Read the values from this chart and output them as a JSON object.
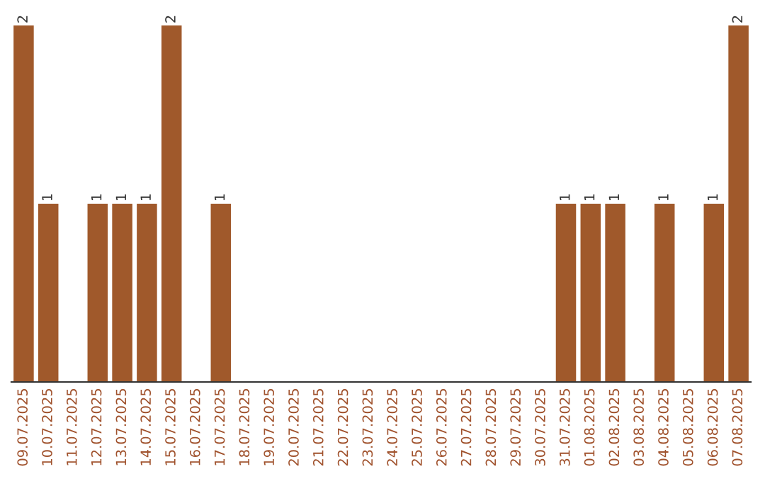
{
  "chart_data": {
    "type": "bar",
    "categories": [
      "09.07.2025",
      "10.07.2025",
      "11.07.2025",
      "12.07.2025",
      "13.07.2025",
      "14.07.2025",
      "15.07.2025",
      "16.07.2025",
      "17.07.2025",
      "18.07.2025",
      "19.07.2025",
      "20.07.2025",
      "21.07.2025",
      "22.07.2025",
      "23.07.2025",
      "24.07.2025",
      "25.07.2025",
      "26.07.2025",
      "27.07.2025",
      "28.07.2025",
      "29.07.2025",
      "30.07.2025",
      "31.07.2025",
      "01.08.2025",
      "02.08.2025",
      "03.08.2025",
      "04.08.2025",
      "05.08.2025",
      "06.08.2025",
      "07.08.2025"
    ],
    "values": [
      2,
      1,
      0,
      1,
      1,
      1,
      2,
      0,
      1,
      0,
      0,
      0,
      0,
      0,
      0,
      0,
      0,
      0,
      0,
      0,
      0,
      0,
      1,
      1,
      1,
      0,
      1,
      0,
      1,
      2
    ],
    "value_labels": [
      "2",
      "1",
      null,
      "1",
      "1",
      "1",
      "2",
      null,
      "1",
      null,
      null,
      null,
      null,
      null,
      null,
      null,
      null,
      null,
      null,
      null,
      null,
      null,
      "1",
      "1",
      "1",
      null,
      "1",
      null,
      "1",
      "2"
    ],
    "color": "#a0592b",
    "grid": false,
    "legend": false
  }
}
